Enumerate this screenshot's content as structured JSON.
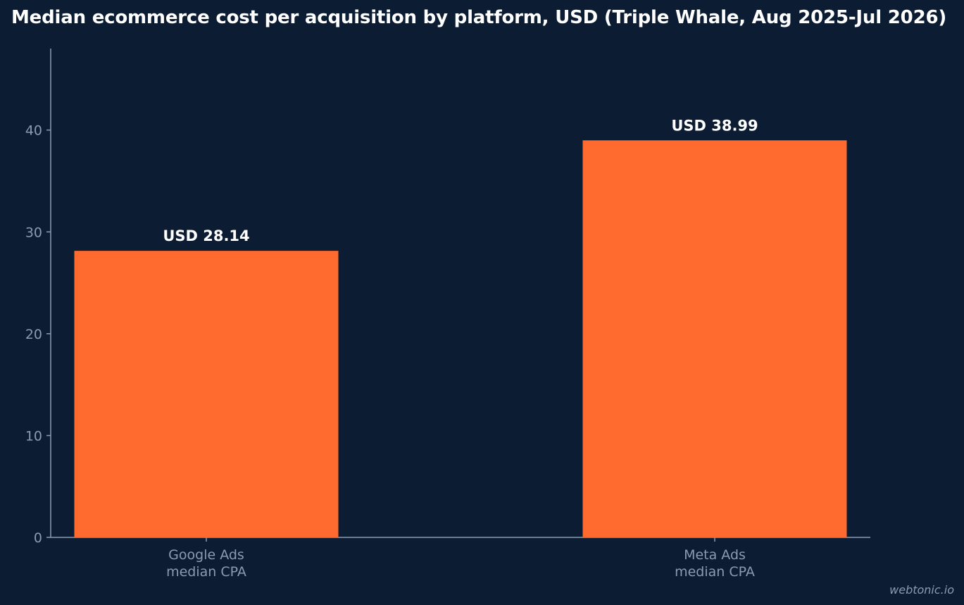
{
  "chart_data": {
    "type": "bar",
    "title": "Median ecommerce cost per acquisition by platform, USD (Triple Whale, Aug 2025-Jul 2026)",
    "categories": [
      [
        "Google Ads",
        "median CPA"
      ],
      [
        "Meta Ads",
        "median CPA"
      ]
    ],
    "values": [
      28.14,
      38.99
    ],
    "value_labels": [
      "USD 28.14",
      "USD 38.99"
    ],
    "xlabel": "",
    "ylabel": "",
    "ylim": [
      0,
      48
    ],
    "yticks": [
      0,
      10,
      20,
      30,
      40
    ],
    "grid": false,
    "colors": {
      "background": "#0b1c33",
      "bar": "#ff6b2f",
      "axis": "#8c9bb3",
      "text": "#ffffff"
    }
  },
  "watermark": "webtonic.io"
}
